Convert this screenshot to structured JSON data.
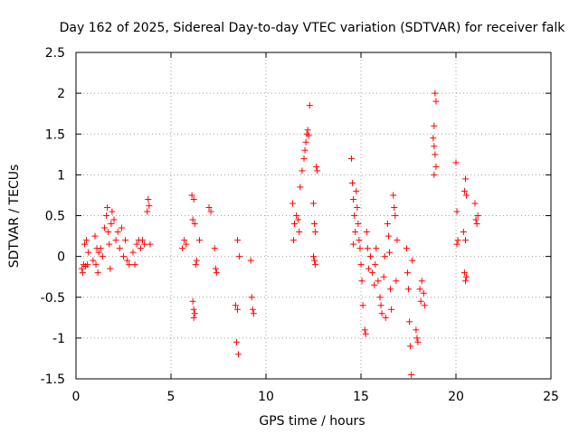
{
  "chart_data": {
    "type": "scatter",
    "title": "Day 162 of 2025, Sidereal Day-to-day VTEC variation (SDTVAR) for receiver falk",
    "xlabel": "GPS time / hours",
    "ylabel": "SDTVAR / TECUs",
    "xlim": [
      0,
      25
    ],
    "ylim": [
      -1.5,
      2.5
    ],
    "xticks": [
      0,
      5,
      10,
      15,
      20,
      25
    ],
    "yticks": [
      -1.5,
      -1,
      -0.5,
      0,
      0.5,
      1,
      1.5,
      2,
      2.5
    ],
    "xtick_labels": [
      "0",
      "5",
      "10",
      "15",
      "20",
      "25"
    ],
    "ytick_labels": [
      "-1.5",
      "-1",
      "-0.5",
      "0",
      "0.5",
      "1",
      "1.5",
      "2",
      "2.5"
    ],
    "grid": true,
    "marker": "+",
    "series": [
      {
        "name": "SDTVAR",
        "color": "#ff0000",
        "points": [
          [
            0.3,
            -0.15
          ],
          [
            0.35,
            -0.2
          ],
          [
            0.4,
            -0.1
          ],
          [
            0.45,
            0.15
          ],
          [
            0.5,
            -0.12
          ],
          [
            0.55,
            0.2
          ],
          [
            0.6,
            -0.1
          ],
          [
            0.65,
            0.05
          ],
          [
            0.9,
            -0.05
          ],
          [
            1.0,
            0.25
          ],
          [
            1.05,
            -0.1
          ],
          [
            1.1,
            0.1
          ],
          [
            1.15,
            -0.2
          ],
          [
            1.2,
            0.05
          ],
          [
            1.3,
            0.1
          ],
          [
            1.4,
            0.0
          ],
          [
            1.5,
            0.35
          ],
          [
            1.6,
            0.5
          ],
          [
            1.65,
            0.6
          ],
          [
            1.7,
            0.3
          ],
          [
            1.75,
            0.15
          ],
          [
            1.8,
            -0.15
          ],
          [
            1.85,
            0.4
          ],
          [
            1.9,
            0.55
          ],
          [
            2.0,
            0.45
          ],
          [
            2.1,
            0.2
          ],
          [
            2.2,
            0.3
          ],
          [
            2.3,
            0.1
          ],
          [
            2.4,
            0.35
          ],
          [
            2.5,
            0.0
          ],
          [
            2.6,
            0.2
          ],
          [
            2.7,
            -0.05
          ],
          [
            2.8,
            -0.1
          ],
          [
            3.0,
            0.05
          ],
          [
            3.1,
            -0.1
          ],
          [
            3.2,
            0.15
          ],
          [
            3.3,
            0.2
          ],
          [
            3.4,
            0.1
          ],
          [
            3.5,
            0.2
          ],
          [
            3.6,
            0.15
          ],
          [
            3.75,
            0.55
          ],
          [
            3.8,
            0.7
          ],
          [
            3.85,
            0.62
          ],
          [
            3.9,
            0.15
          ],
          [
            5.6,
            0.1
          ],
          [
            5.7,
            0.2
          ],
          [
            5.8,
            0.15
          ],
          [
            6.1,
            0.75
          ],
          [
            6.15,
            0.45
          ],
          [
            6.2,
            0.7
          ],
          [
            6.25,
            0.4
          ],
          [
            6.15,
            -0.55
          ],
          [
            6.2,
            -0.65
          ],
          [
            6.25,
            -0.7
          ],
          [
            6.3,
            -0.1
          ],
          [
            6.35,
            -0.05
          ],
          [
            6.2,
            -0.75
          ],
          [
            6.5,
            0.2
          ],
          [
            7.0,
            0.6
          ],
          [
            7.1,
            0.55
          ],
          [
            7.3,
            0.1
          ],
          [
            7.35,
            -0.15
          ],
          [
            7.4,
            -0.2
          ],
          [
            8.4,
            -0.6
          ],
          [
            8.5,
            -0.65
          ],
          [
            8.45,
            -1.05
          ],
          [
            8.55,
            -1.2
          ],
          [
            8.5,
            0.2
          ],
          [
            8.6,
            0.0
          ],
          [
            9.2,
            -0.05
          ],
          [
            9.25,
            -0.5
          ],
          [
            9.3,
            -0.65
          ],
          [
            9.35,
            -0.7
          ],
          [
            11.4,
            0.65
          ],
          [
            11.45,
            0.2
          ],
          [
            11.5,
            0.4
          ],
          [
            11.6,
            0.5
          ],
          [
            11.7,
            0.45
          ],
          [
            11.75,
            0.3
          ],
          [
            11.8,
            0.85
          ],
          [
            11.9,
            1.05
          ],
          [
            12.0,
            1.2
          ],
          [
            12.05,
            1.3
          ],
          [
            12.1,
            1.4
          ],
          [
            12.15,
            1.5
          ],
          [
            12.2,
            1.55
          ],
          [
            12.25,
            1.48
          ],
          [
            12.3,
            1.85
          ],
          [
            12.5,
            0.65
          ],
          [
            12.55,
            0.4
          ],
          [
            12.6,
            0.3
          ],
          [
            12.5,
            0.0
          ],
          [
            12.55,
            -0.05
          ],
          [
            12.6,
            -0.1
          ],
          [
            12.65,
            1.1
          ],
          [
            12.7,
            1.05
          ],
          [
            14.5,
            1.2
          ],
          [
            14.55,
            0.9
          ],
          [
            14.6,
            0.7
          ],
          [
            14.65,
            0.5
          ],
          [
            14.7,
            0.3
          ],
          [
            14.6,
            0.15
          ],
          [
            14.75,
            0.8
          ],
          [
            14.8,
            0.6
          ],
          [
            14.85,
            0.4
          ],
          [
            14.9,
            0.2
          ],
          [
            14.95,
            0.1
          ],
          [
            15.0,
            -0.1
          ],
          [
            15.05,
            -0.3
          ],
          [
            15.1,
            -0.6
          ],
          [
            15.2,
            -0.9
          ],
          [
            15.25,
            -0.95
          ],
          [
            15.3,
            0.3
          ],
          [
            15.35,
            0.1
          ],
          [
            15.4,
            -0.15
          ],
          [
            15.5,
            0.0
          ],
          [
            15.6,
            -0.2
          ],
          [
            15.7,
            -0.35
          ],
          [
            15.75,
            -0.1
          ],
          [
            15.8,
            0.1
          ],
          [
            15.9,
            -0.3
          ],
          [
            16.0,
            -0.5
          ],
          [
            16.05,
            -0.6
          ],
          [
            16.1,
            -0.7
          ],
          [
            16.2,
            -0.25
          ],
          [
            16.25,
            0.0
          ],
          [
            16.3,
            -0.75
          ],
          [
            16.4,
            0.4
          ],
          [
            16.45,
            0.25
          ],
          [
            16.5,
            0.05
          ],
          [
            16.55,
            -0.4
          ],
          [
            16.6,
            -0.65
          ],
          [
            16.7,
            0.75
          ],
          [
            16.75,
            0.6
          ],
          [
            16.8,
            0.5
          ],
          [
            16.85,
            -0.3
          ],
          [
            16.9,
            0.2
          ],
          [
            17.4,
            0.1
          ],
          [
            17.45,
            -0.2
          ],
          [
            17.5,
            -0.4
          ],
          [
            17.55,
            -0.8
          ],
          [
            17.6,
            -1.1
          ],
          [
            17.65,
            -1.45
          ],
          [
            17.7,
            -0.05
          ],
          [
            17.9,
            -0.9
          ],
          [
            17.95,
            -1.0
          ],
          [
            18.0,
            -1.05
          ],
          [
            18.1,
            -0.4
          ],
          [
            18.15,
            -0.55
          ],
          [
            18.2,
            -0.3
          ],
          [
            18.3,
            -0.45
          ],
          [
            18.35,
            -0.6
          ],
          [
            18.9,
            2.0
          ],
          [
            18.95,
            1.9
          ],
          [
            18.85,
            1.6
          ],
          [
            18.8,
            1.45
          ],
          [
            18.85,
            1.35
          ],
          [
            18.9,
            1.25
          ],
          [
            18.95,
            1.1
          ],
          [
            18.85,
            1.0
          ],
          [
            20.0,
            1.15
          ],
          [
            20.05,
            0.55
          ],
          [
            20.1,
            0.2
          ],
          [
            20.05,
            0.15
          ],
          [
            20.45,
            0.8
          ],
          [
            20.5,
            0.95
          ],
          [
            20.55,
            0.75
          ],
          [
            20.4,
            0.3
          ],
          [
            20.5,
            0.2
          ],
          [
            20.45,
            -0.2
          ],
          [
            20.5,
            -0.3
          ],
          [
            20.55,
            -0.25
          ],
          [
            21.0,
            0.65
          ],
          [
            21.05,
            0.45
          ],
          [
            21.1,
            0.4
          ],
          [
            21.15,
            0.5
          ]
        ]
      }
    ]
  }
}
